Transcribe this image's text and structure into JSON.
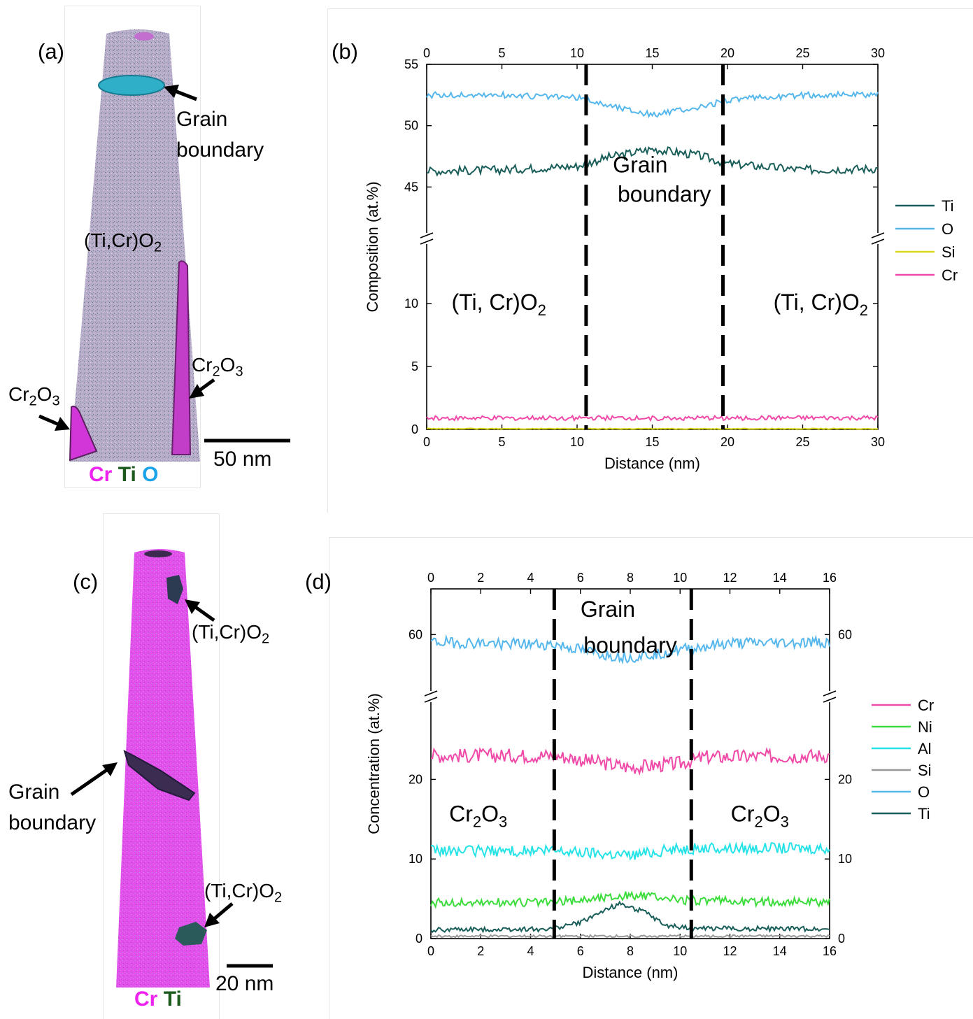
{
  "panel_a": {
    "letter": "(a)",
    "labels": {
      "grain_boundary_1": "Grain",
      "grain_boundary_2": "boundary",
      "matrix_pre": "(Ti,Cr)O",
      "matrix_sub": "2",
      "cr2o3_right_pre": "Cr",
      "cr2o3_right_sub": "2",
      "cr2o3_right_post": "O",
      "cr2o3_right_sub2": "3",
      "cr2o3_left_pre": "Cr",
      "cr2o3_left_sub": "2",
      "cr2o3_left_post": "O",
      "cr2o3_left_sub2": "3"
    },
    "scale_bar": "50 nm",
    "element_key": [
      {
        "text": "Cr",
        "color": "#ee22ee"
      },
      {
        "text": "Ti",
        "color": "#1d5a1d"
      },
      {
        "text": "O",
        "color": "#1aa3e6"
      }
    ]
  },
  "panel_c": {
    "letter": "(c)",
    "labels": {
      "tio2_top_pre": "(Ti,Cr)O",
      "tio2_top_sub": "2",
      "grain_boundary_1": "Grain",
      "grain_boundary_2": "boundary",
      "tio2_bottom_pre": "(Ti,Cr)O",
      "tio2_bottom_sub": "2"
    },
    "scale_bar": "20 nm",
    "element_key": [
      {
        "text": "Cr",
        "color": "#ee22ee"
      },
      {
        "text": "Ti",
        "color": "#1d5a1d"
      }
    ]
  },
  "chart_data": [
    {
      "panel": "(b)",
      "type": "line",
      "xlabel": "Distance (nm)",
      "ylabel": "Composition (at.%)",
      "xlim": [
        0,
        30
      ],
      "xticks": [
        0,
        5,
        10,
        15,
        20,
        25,
        30
      ],
      "y_axis_broken": true,
      "ylim_lower": [
        0,
        14
      ],
      "ylim_upper": [
        42,
        55
      ],
      "yticks": [
        0,
        5,
        10,
        45,
        50,
        55
      ],
      "boundaries_x": [
        10.6,
        19.7
      ],
      "annotations": [
        {
          "text": "Grain",
          "x": 14.2,
          "y": 46.2
        },
        {
          "text": "boundary",
          "x": 15.8,
          "y": 43.8
        },
        {
          "text_pre": "(Ti, Cr)O",
          "sub": "2",
          "x": 4.8,
          "y": 9.5
        },
        {
          "text_pre": "(Ti, Cr)O",
          "sub": "2",
          "x": 26.2,
          "y": 9.5
        }
      ],
      "legend_position": "right",
      "series": [
        {
          "name": "Ti",
          "color": "#1a5e5a",
          "profile": [
            [
              0,
              46.3
            ],
            [
              5,
              46.4
            ],
            [
              10,
              46.7
            ],
            [
              12,
              47.4
            ],
            [
              15,
              48.1
            ],
            [
              18,
              47.6
            ],
            [
              20,
              46.9
            ],
            [
              25,
              46.4
            ],
            [
              30,
              46.5
            ]
          ],
          "noise": 0.35
        },
        {
          "name": "O",
          "color": "#56b7ec",
          "profile": [
            [
              0,
              52.5
            ],
            [
              5,
              52.5
            ],
            [
              10,
              52.3
            ],
            [
              12,
              51.7
            ],
            [
              15,
              50.9
            ],
            [
              18,
              51.4
            ],
            [
              20,
              52.1
            ],
            [
              25,
              52.5
            ],
            [
              30,
              52.5
            ]
          ],
          "noise": 0.25
        },
        {
          "name": "Si",
          "color": "#d8d818",
          "profile": [
            [
              0,
              0.05
            ],
            [
              30,
              0.05
            ]
          ],
          "noise": 0.03
        },
        {
          "name": "Cr",
          "color": "#ef4aa8",
          "profile": [
            [
              0,
              0.9
            ],
            [
              30,
              0.9
            ]
          ],
          "noise": 0.18
        }
      ]
    },
    {
      "panel": "(d)",
      "type": "line",
      "xlabel": "Distance (nm)",
      "ylabel": "Concentration (at.%)",
      "xlim": [
        0,
        16
      ],
      "xticks": [
        0,
        2,
        4,
        6,
        8,
        10,
        12,
        14,
        16
      ],
      "y_axis_broken": true,
      "ylim_lower": [
        0,
        29
      ],
      "ylim_upper": [
        50,
        69
      ],
      "yticks": [
        0,
        10,
        20,
        60
      ],
      "boundaries_x": [
        4.95,
        10.45
      ],
      "annotations": [
        {
          "text": "Grain",
          "x": 7.1,
          "y": 63.5
        },
        {
          "text": "boundary",
          "x": 8.0,
          "y": 56.4
        },
        {
          "text_pre": "Cr",
          "sub": "2",
          "text_post": "O",
          "sub2": "3",
          "x": 1.9,
          "y": 14.7
        },
        {
          "text_pre": "Cr",
          "sub": "2",
          "text_post": "O",
          "sub2": "3",
          "x": 13.2,
          "y": 14.7
        }
      ],
      "legend_position": "right",
      "series": [
        {
          "name": "Cr",
          "color": "#ef4aa8",
          "profile": [
            [
              0,
              23
            ],
            [
              5,
              23
            ],
            [
              7,
              22
            ],
            [
              8,
              21.5
            ],
            [
              10,
              22
            ],
            [
              11,
              22.8
            ],
            [
              16,
              23
            ]
          ],
          "noise": 0.9
        },
        {
          "name": "Ni",
          "color": "#3ddc3d",
          "profile": [
            [
              0,
              4.5
            ],
            [
              5,
              4.6
            ],
            [
              8,
              5.5
            ],
            [
              10,
              4.8
            ],
            [
              16,
              4.5
            ]
          ],
          "noise": 0.55
        },
        {
          "name": "Al",
          "color": "#26e3e8",
          "profile": [
            [
              0,
              11
            ],
            [
              5,
              11
            ],
            [
              8,
              10.5
            ],
            [
              10,
              11.3
            ],
            [
              16,
              11.4
            ]
          ],
          "noise": 0.7
        },
        {
          "name": "Si",
          "color": "#999999",
          "profile": [
            [
              0,
              0.3
            ],
            [
              16,
              0.3
            ]
          ],
          "noise": 0.15
        },
        {
          "name": "O",
          "color": "#56b7ec",
          "profile": [
            [
              0,
              58.5
            ],
            [
              5,
              58
            ],
            [
              7,
              56
            ],
            [
              8,
              55.5
            ],
            [
              10,
              57
            ],
            [
              12,
              58.3
            ],
            [
              16,
              58.5
            ]
          ],
          "noise": 1.1
        },
        {
          "name": "Ti",
          "color": "#1a5e5a",
          "profile": [
            [
              0,
              1.1
            ],
            [
              4.8,
              1.2
            ],
            [
              6,
              2.0
            ],
            [
              7,
              3.6
            ],
            [
              7.6,
              4.4
            ],
            [
              8.6,
              3.3
            ],
            [
              9.4,
              1.6
            ],
            [
              10.5,
              1.3
            ],
            [
              16,
              1.2
            ]
          ],
          "noise": 0.3
        }
      ]
    }
  ]
}
